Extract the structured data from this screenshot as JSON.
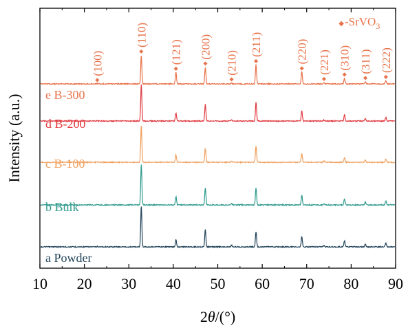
{
  "chart_data": {
    "type": "line",
    "title": "",
    "xlabel_prefix": "2",
    "xlabel_theta": "θ",
    "xlabel_suffix": "/(°)",
    "ylabel": "Intensity (a.u.)",
    "xlim": [
      10,
      90
    ],
    "xticks": [
      "10",
      "20",
      "30",
      "40",
      "50",
      "60",
      "70",
      "80",
      "90"
    ],
    "grid": false,
    "legend": {
      "marker": "◆",
      "label": "-SrVO",
      "subscript": "3",
      "placement": "top-right",
      "color": "#e8734a"
    },
    "peaks": [
      {
        "two_theta": 22.9,
        "label": "(100)"
      },
      {
        "two_theta": 32.8,
        "label": "(110)"
      },
      {
        "two_theta": 40.6,
        "label": "(121)"
      },
      {
        "two_theta": 47.2,
        "label": "(200)"
      },
      {
        "two_theta": 53.1,
        "label": "(210)"
      },
      {
        "two_theta": 58.6,
        "label": "(211)"
      },
      {
        "two_theta": 68.9,
        "label": "(220)"
      },
      {
        "two_theta": 73.9,
        "label": "(221)"
      },
      {
        "two_theta": 78.5,
        "label": "(310)"
      },
      {
        "two_theta": 83.2,
        "label": "(311)"
      },
      {
        "two_theta": 87.8,
        "label": "(222)"
      }
    ],
    "series": [
      {
        "name": "a Powder",
        "color": "#22445a",
        "intensities": [
          0.01,
          1.0,
          0.18,
          0.42,
          0.04,
          0.37,
          0.26,
          0.03,
          0.15,
          0.07,
          0.09
        ]
      },
      {
        "name": "b Bulk",
        "color": "#2e9a8c",
        "intensities": [
          0.01,
          1.0,
          0.2,
          0.42,
          0.03,
          0.42,
          0.24,
          0.03,
          0.15,
          0.07,
          0.09
        ]
      },
      {
        "name": "c B-100",
        "color": "#f0a05e",
        "intensities": [
          0.01,
          1.0,
          0.2,
          0.38,
          0.03,
          0.44,
          0.23,
          0.03,
          0.13,
          0.06,
          0.08
        ]
      },
      {
        "name": "d B-200",
        "color": "#e03c42",
        "intensities": [
          0.01,
          1.0,
          0.22,
          0.46,
          0.03,
          0.5,
          0.28,
          0.03,
          0.18,
          0.07,
          0.1
        ]
      },
      {
        "name": "e B-300",
        "color": "#e8734a",
        "intensities": [
          0.01,
          1.0,
          0.4,
          0.58,
          0.03,
          0.67,
          0.42,
          0.05,
          0.2,
          0.08,
          0.12
        ]
      }
    ]
  }
}
